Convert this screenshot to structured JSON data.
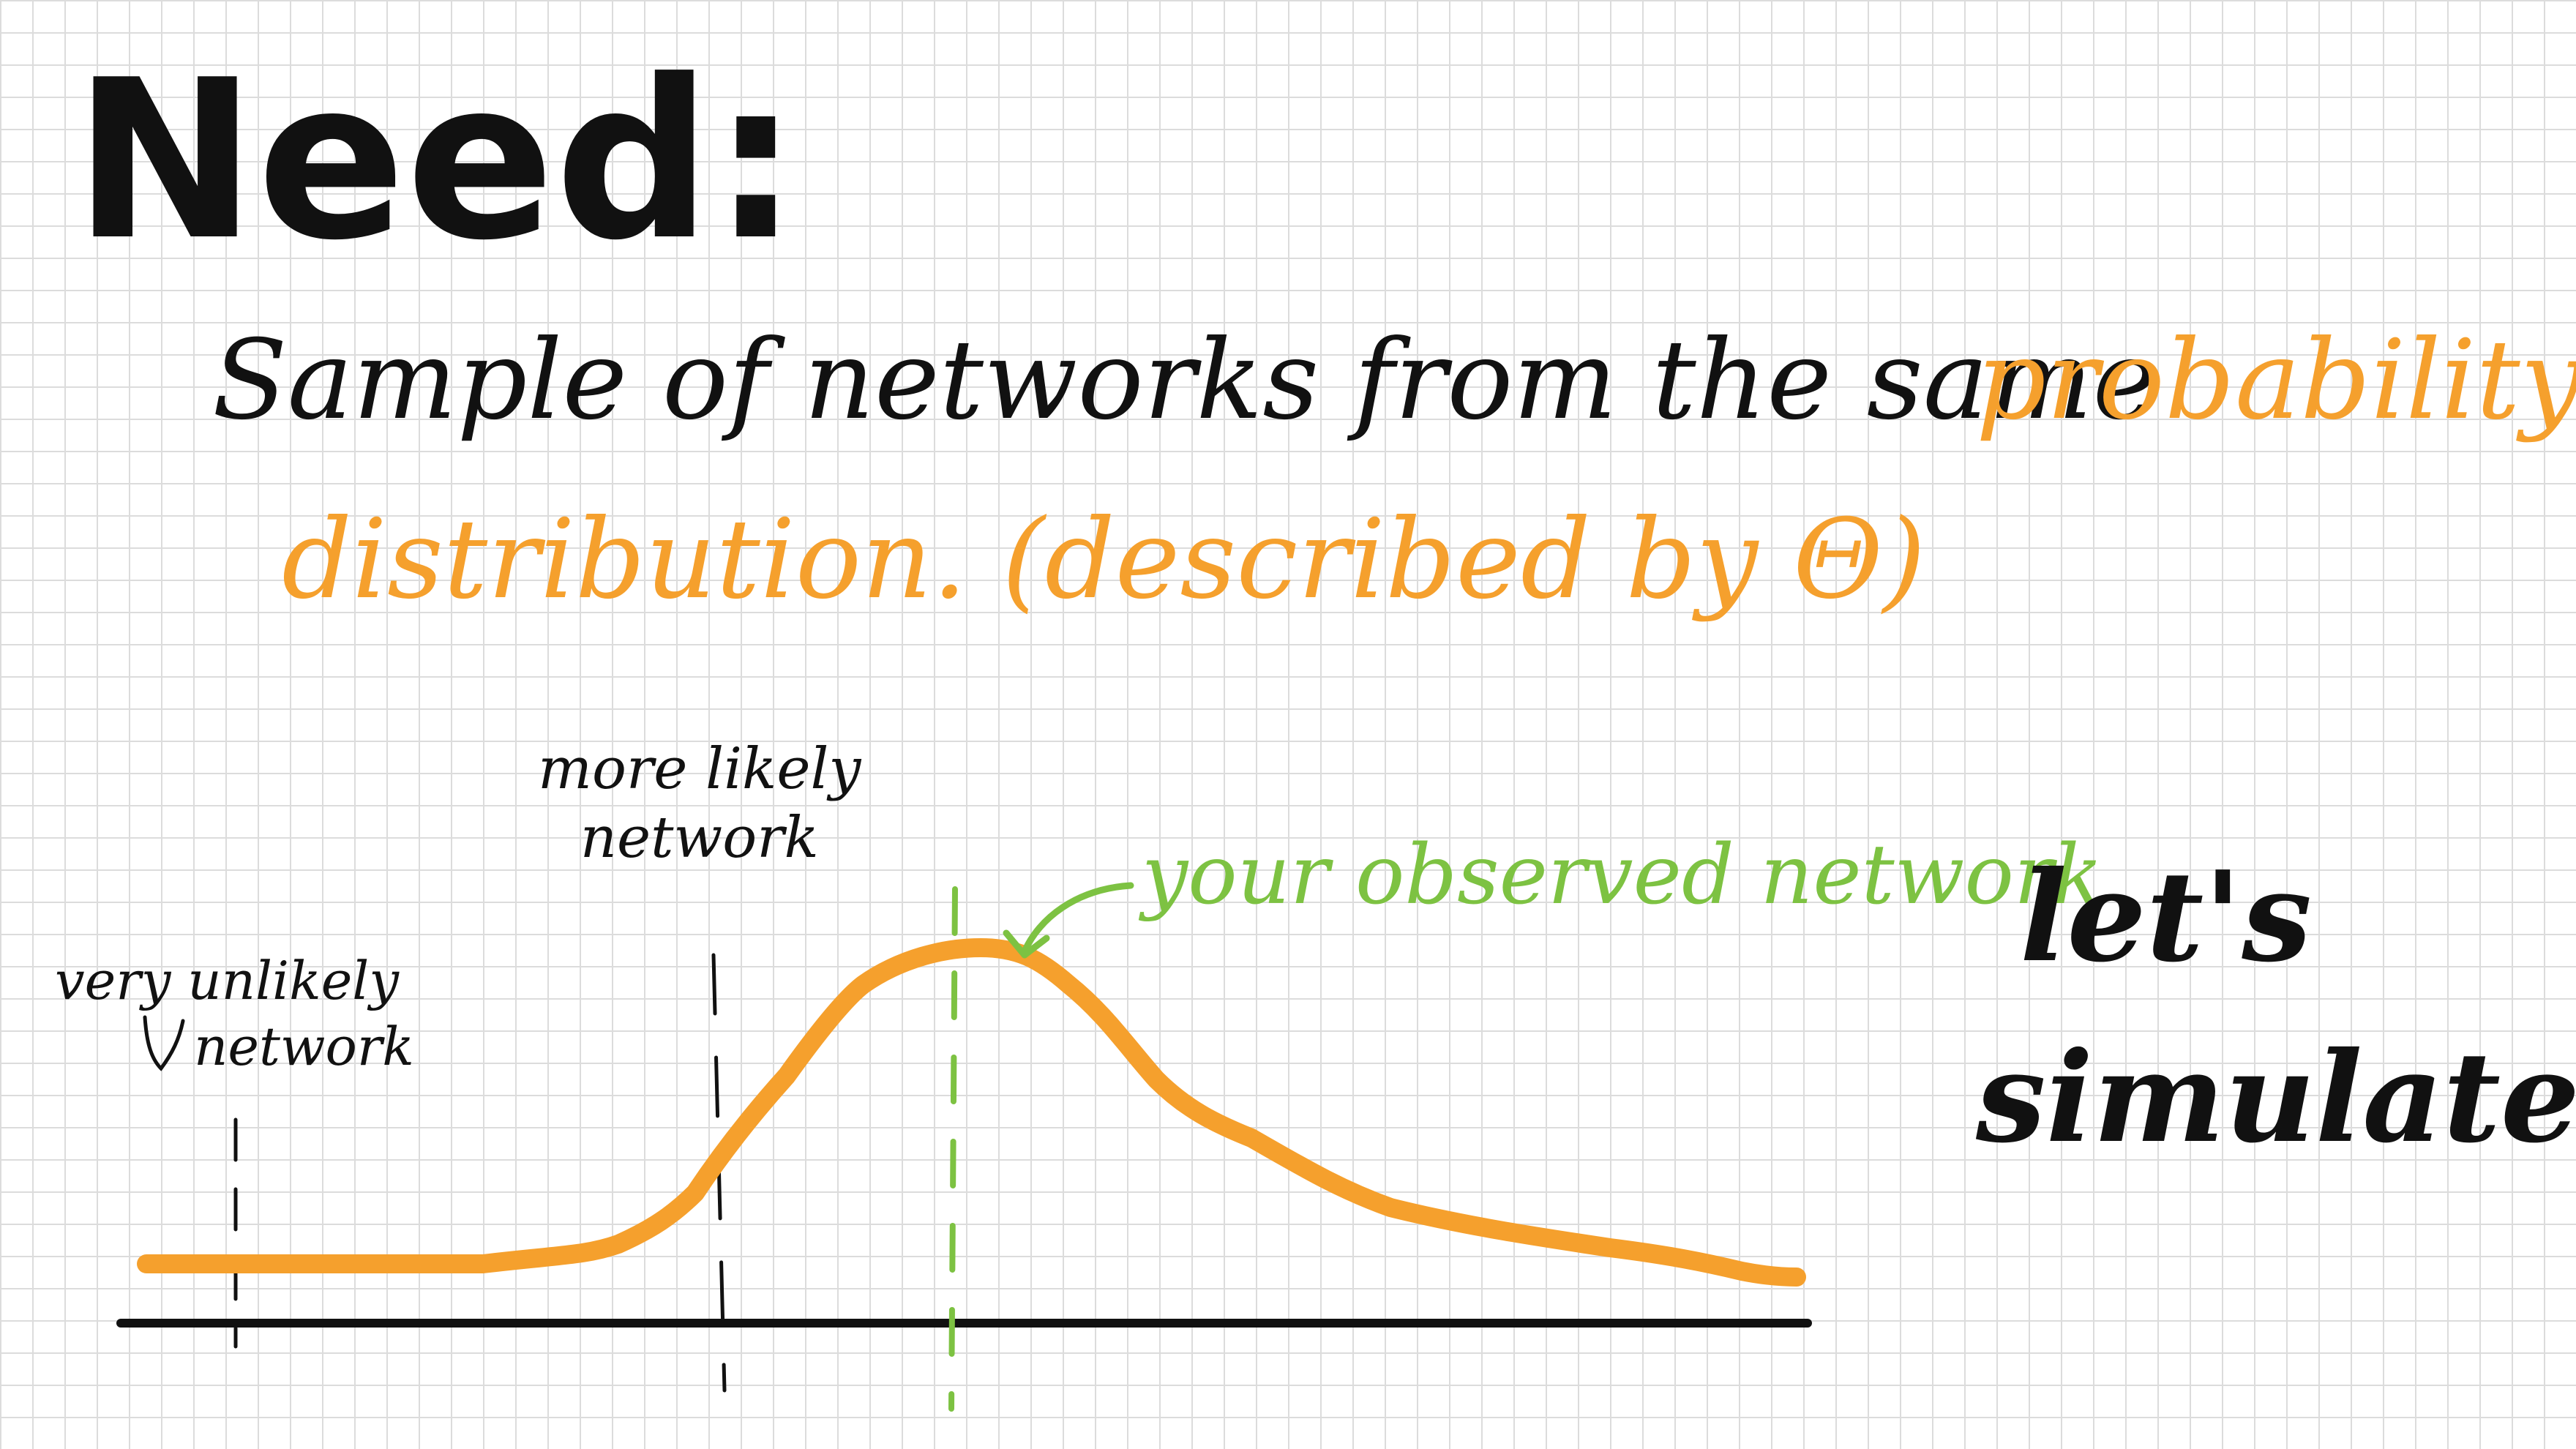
{
  "title": "Need:",
  "description": {
    "text_black": "Sample of networks from the same",
    "text_orange_1": "probability",
    "text_orange_2": "distribution. (described by Θ)"
  },
  "annotations": {
    "more_likely_line1": "more likely",
    "more_likely_line2": "network",
    "very_unlikely_line1": "very unlikely",
    "very_unlikely_line2": "network",
    "observed": "your observed network",
    "lets_line1": "let's",
    "lets_line2": "simulate!"
  },
  "colors": {
    "ink": "#111111",
    "orange": "#f5a02d",
    "green": "#7dc242",
    "grid": "#dcdcdc"
  }
}
